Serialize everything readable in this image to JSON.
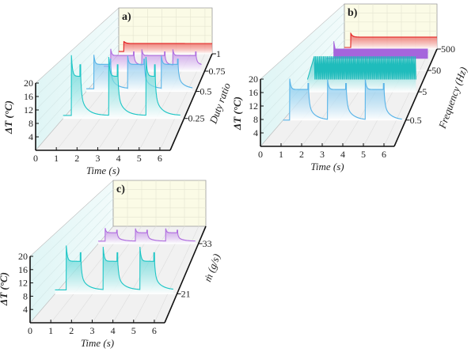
{
  "chart_data": [
    {
      "type": "line",
      "panel_label": "a)",
      "xlabel": "Time (s)",
      "ylabel": "ΔT (°C)",
      "depth_label": "Duty ratio",
      "x_ticks": [
        "0",
        "1",
        "2",
        "3",
        "4",
        "5",
        "6"
      ],
      "y_ticks": [
        "4",
        "8",
        "12",
        "16",
        "20"
      ],
      "xlim": [
        0,
        6.5
      ],
      "ylim": [
        0,
        20
      ],
      "series": [
        {
          "name": "0.25",
          "color": "#1fc6c6",
          "kind": "pulse",
          "period": 2,
          "duty": 0.25,
          "start": 0.45,
          "end": 6.3,
          "base": 1,
          "plateau": 14,
          "peak": 21
        },
        {
          "name": "0.5",
          "color": "#58b4e8",
          "kind": "pulse",
          "period": 2,
          "duty": 0.5,
          "start": 0.45,
          "end": 6.3,
          "base": 1,
          "plateau": 10,
          "peak": 13.5
        },
        {
          "name": "0.75",
          "color": "#b06de0",
          "kind": "pulse",
          "period": 2,
          "duty": 0.75,
          "start": 0.45,
          "end": 6.3,
          "base": 2,
          "plateau": 6.3,
          "peak": 9
        },
        {
          "name": "1",
          "color": "#e42020",
          "kind": "step",
          "start": 0.35,
          "end": 6.5,
          "base": 1,
          "plateau": 4.5,
          "peak": 5.5
        }
      ]
    },
    {
      "type": "line",
      "panel_label": "b)",
      "xlabel": "Time (s)",
      "ylabel": "ΔT (°C)",
      "depth_label": "Frequency (Hz)",
      "x_ticks": [
        "0",
        "1",
        "2",
        "3",
        "4",
        "5",
        "6"
      ],
      "y_ticks": [
        "4",
        "8",
        "12",
        "16",
        "20"
      ],
      "xlim": [
        0,
        6.5
      ],
      "ylim": [
        0,
        20
      ],
      "series": [
        {
          "name": "0.5",
          "color": "#58b4e8",
          "kind": "pulse",
          "period": 2,
          "duty": 0.5,
          "start": 0.35,
          "end": 6.3,
          "base": 0,
          "plateau": 10,
          "peak": 13.5
        },
        {
          "name": "5",
          "color": "#1fbcbc",
          "kind": "osc",
          "start": 0.4,
          "end": 6.4,
          "low": 4.5,
          "high": 13
        },
        {
          "name": "50",
          "color": "#a565dc",
          "kind": "band",
          "start": 0.5,
          "end": 6.5,
          "low": 4.8,
          "high": 8.6,
          "peak": 11.7
        },
        {
          "name": "500",
          "color": "#e42020",
          "kind": "step",
          "start": 0.45,
          "end": 6.5,
          "base": 0.7,
          "plateau": 5.3,
          "peak": 7
        }
      ]
    },
    {
      "type": "line",
      "panel_label": "c)",
      "xlabel": "Time (s)",
      "ylabel": "ΔT (°C)",
      "depth_label": "ṁ (g/s)",
      "x_ticks": [
        "0",
        "1",
        "2",
        "3",
        "4",
        "5",
        "6"
      ],
      "y_ticks": [
        "4",
        "8",
        "12",
        "16",
        "20"
      ],
      "xlim": [
        0,
        6.5
      ],
      "ylim": [
        0,
        20
      ],
      "series": [
        {
          "name": "21",
          "color": "#1fc6c6",
          "kind": "pulse",
          "period": 1.96,
          "duty": 0.4,
          "start": 0.6,
          "end": 6.3,
          "base": 1.3,
          "plateau": 10.8,
          "peak": 16
        },
        {
          "name": "33",
          "color": "#b06de0",
          "kind": "pulse",
          "period": 1.96,
          "duty": 0.4,
          "start": 0.45,
          "end": 6.3,
          "base": 1,
          "plateau": 4.4,
          "peak": 6.3
        }
      ]
    }
  ]
}
